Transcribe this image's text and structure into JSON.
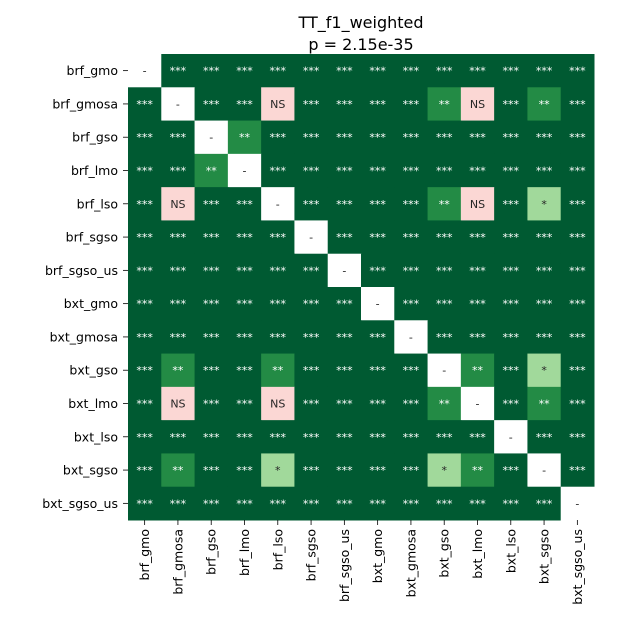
{
  "chart_data": {
    "type": "heatmap",
    "title": "TT_f1_weighted",
    "subtitle": "p = 2.15e-35",
    "labels": [
      "brf_gmo",
      "brf_gmosa",
      "brf_gso",
      "brf_lmo",
      "brf_lso",
      "brf_sgso",
      "brf_sgso_us",
      "bxt_gmo",
      "bxt_gmosa",
      "bxt_gso",
      "bxt_lmo",
      "bxt_lso",
      "bxt_sgso",
      "bxt_sgso_us"
    ],
    "matrix": [
      [
        "-",
        "***",
        "***",
        "***",
        "***",
        "***",
        "***",
        "***",
        "***",
        "***",
        "***",
        "***",
        "***",
        "***"
      ],
      [
        "***",
        "-",
        "***",
        "***",
        "NS",
        "***",
        "***",
        "***",
        "***",
        "**",
        "NS",
        "***",
        "**",
        "***"
      ],
      [
        "***",
        "***",
        "-",
        "**",
        "***",
        "***",
        "***",
        "***",
        "***",
        "***",
        "***",
        "***",
        "***",
        "***"
      ],
      [
        "***",
        "***",
        "**",
        "-",
        "***",
        "***",
        "***",
        "***",
        "***",
        "***",
        "***",
        "***",
        "***",
        "***"
      ],
      [
        "***",
        "NS",
        "***",
        "***",
        "-",
        "***",
        "***",
        "***",
        "***",
        "**",
        "NS",
        "***",
        "*",
        "***"
      ],
      [
        "***",
        "***",
        "***",
        "***",
        "***",
        "-",
        "***",
        "***",
        "***",
        "***",
        "***",
        "***",
        "***",
        "***"
      ],
      [
        "***",
        "***",
        "***",
        "***",
        "***",
        "***",
        "-",
        "***",
        "***",
        "***",
        "***",
        "***",
        "***",
        "***"
      ],
      [
        "***",
        "***",
        "***",
        "***",
        "***",
        "***",
        "***",
        "-",
        "***",
        "***",
        "***",
        "***",
        "***",
        "***"
      ],
      [
        "***",
        "***",
        "***",
        "***",
        "***",
        "***",
        "***",
        "***",
        "-",
        "***",
        "***",
        "***",
        "***",
        "***"
      ],
      [
        "***",
        "**",
        "***",
        "***",
        "**",
        "***",
        "***",
        "***",
        "***",
        "-",
        "**",
        "***",
        "*",
        "***"
      ],
      [
        "***",
        "NS",
        "***",
        "***",
        "NS",
        "***",
        "***",
        "***",
        "***",
        "**",
        "-",
        "***",
        "**",
        "***"
      ],
      [
        "***",
        "***",
        "***",
        "***",
        "***",
        "***",
        "***",
        "***",
        "***",
        "***",
        "***",
        "-",
        "***",
        "***"
      ],
      [
        "***",
        "**",
        "***",
        "***",
        "*",
        "***",
        "***",
        "***",
        "***",
        "*",
        "**",
        "***",
        "-",
        "***"
      ],
      [
        "***",
        "***",
        "***",
        "***",
        "***",
        "***",
        "***",
        "***",
        "***",
        "***",
        "***",
        "***",
        "***",
        "-"
      ]
    ],
    "colors": {
      "***": "#005a32",
      "**": "#238b45",
      "*": "#a1d99b",
      "NS": "#fbd7d4",
      "-": "#ffffff"
    },
    "text_colors": {
      "***": "#ffffff",
      "**": "#ffffff",
      "*": "#262626",
      "NS": "#262626",
      "-": "#262626"
    },
    "grid": false,
    "legend": "none"
  }
}
